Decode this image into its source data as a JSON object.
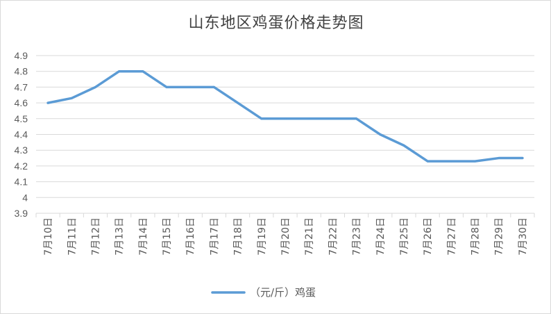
{
  "chart_data": {
    "type": "line",
    "title": "山东地区鸡蛋价格走势图",
    "categories": [
      "7月10日",
      "7月11日",
      "7月12日",
      "7月13日",
      "7月14日",
      "7月15日",
      "7月16日",
      "7月17日",
      "7月18日",
      "7月19日",
      "7月20日",
      "7月21日",
      "7月22日",
      "7月23日",
      "7月24日",
      "7月25日",
      "7月26日",
      "7月27日",
      "7月28日",
      "7月29日",
      "7月30日"
    ],
    "series": [
      {
        "name": "（元/斤）鸡蛋",
        "values": [
          4.6,
          4.63,
          4.7,
          4.8,
          4.8,
          4.7,
          4.7,
          4.7,
          4.6,
          4.5,
          4.5,
          4.5,
          4.5,
          4.5,
          4.4,
          4.33,
          4.23,
          4.23,
          4.23,
          4.25,
          4.25
        ]
      }
    ],
    "ylim": [
      3.9,
      4.9
    ],
    "yticks": [
      "4.9",
      "4.8",
      "4.7",
      "4.6",
      "4.5",
      "4.4",
      "4.3",
      "4.2",
      "4.1",
      "4",
      "3.9"
    ],
    "grid": true,
    "legend": "bottom",
    "line_color": "#5b9bd5"
  }
}
